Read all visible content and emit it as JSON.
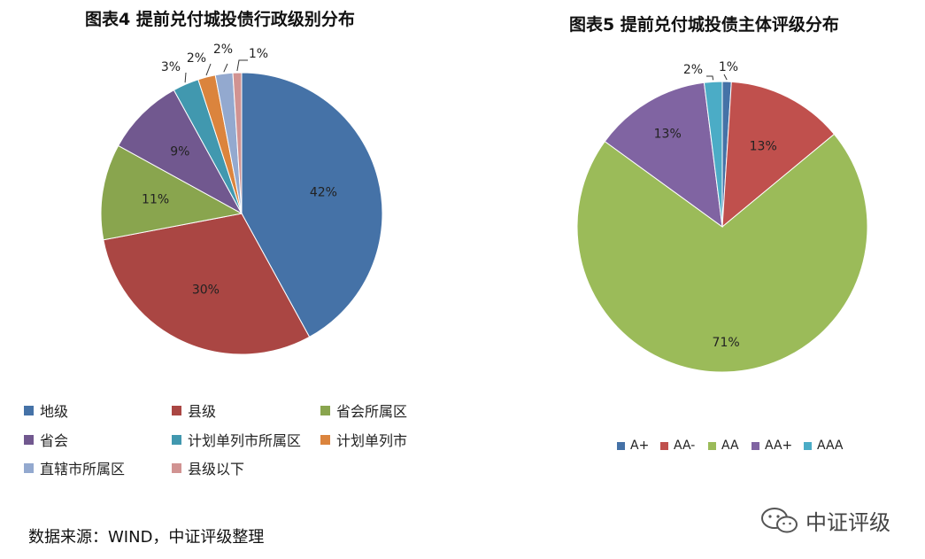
{
  "chart_data": [
    {
      "type": "pie",
      "title": "图表4 提前兑付城投债行政级别分布",
      "categories": [
        "地级",
        "县级",
        "省会所属区",
        "省会",
        "计划单列市所属区",
        "计划单列市",
        "直辖市所属区",
        "县级以下"
      ],
      "values": [
        42,
        30,
        11,
        9,
        3,
        2,
        2,
        1
      ],
      "labels": [
        "42%",
        "30%",
        "11%",
        "9%",
        "3%",
        "2%",
        "2%",
        "1%"
      ],
      "colors": [
        "#4572A7",
        "#AA4643",
        "#89A54E",
        "#71588F",
        "#4198AF",
        "#DB843D",
        "#93A9CF",
        "#D19392"
      ],
      "legend": "bottom"
    },
    {
      "type": "pie",
      "title": "图表5 提前兑付城投债主体评级分布",
      "categories": [
        "A+",
        "AA-",
        "AA",
        "AA+",
        "AAA"
      ],
      "values": [
        1,
        13,
        71,
        13,
        2
      ],
      "labels": [
        "1%",
        "13%",
        "71%",
        "13%",
        "2%"
      ],
      "colors": [
        "#4572A7",
        "#C0504D",
        "#9BBB59",
        "#8064A2",
        "#4BACC6"
      ],
      "legend": "bottom"
    }
  ],
  "footer": {
    "source": "数据来源：WIND，中证评级整理",
    "watermark": "中证评级"
  }
}
